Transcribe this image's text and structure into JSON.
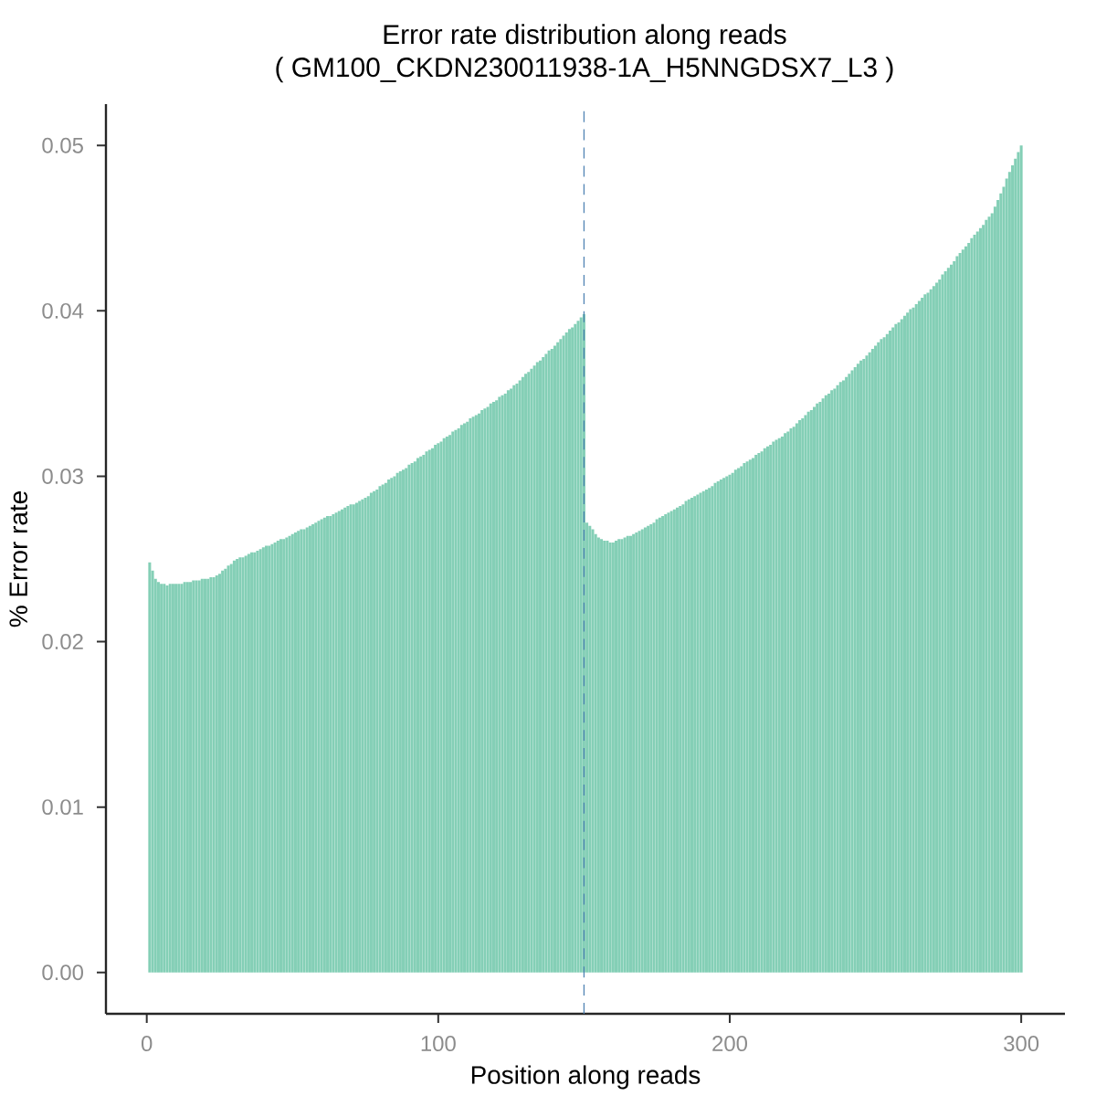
{
  "chart_data": {
    "type": "bar",
    "title": "Error rate distribution along reads",
    "subtitle": "( GM100_CKDN230011938-1A_H5NNGDSX7_L3 )",
    "xlabel": "Position along reads",
    "ylabel": "% Error rate",
    "color": "#84cfb6",
    "x": [
      1,
      2,
      3,
      4,
      5,
      6,
      7,
      8,
      9,
      10,
      11,
      12,
      13,
      14,
      15,
      16,
      17,
      18,
      19,
      20,
      21,
      22,
      23,
      24,
      25,
      26,
      27,
      28,
      29,
      30,
      31,
      32,
      33,
      34,
      35,
      36,
      37,
      38,
      39,
      40,
      41,
      42,
      43,
      44,
      45,
      46,
      47,
      48,
      49,
      50,
      51,
      52,
      53,
      54,
      55,
      56,
      57,
      58,
      59,
      60,
      61,
      62,
      63,
      64,
      65,
      66,
      67,
      68,
      69,
      70,
      71,
      72,
      73,
      74,
      75,
      76,
      77,
      78,
      79,
      80,
      81,
      82,
      83,
      84,
      85,
      86,
      87,
      88,
      89,
      90,
      91,
      92,
      93,
      94,
      95,
      96,
      97,
      98,
      99,
      100,
      101,
      102,
      103,
      104,
      105,
      106,
      107,
      108,
      109,
      110,
      111,
      112,
      113,
      114,
      115,
      116,
      117,
      118,
      119,
      120,
      121,
      122,
      123,
      124,
      125,
      126,
      127,
      128,
      129,
      130,
      131,
      132,
      133,
      134,
      135,
      136,
      137,
      138,
      139,
      140,
      141,
      142,
      143,
      144,
      145,
      146,
      147,
      148,
      149,
      150,
      151,
      152,
      153,
      154,
      155,
      156,
      157,
      158,
      159,
      160,
      161,
      162,
      163,
      164,
      165,
      166,
      167,
      168,
      169,
      170,
      171,
      172,
      173,
      174,
      175,
      176,
      177,
      178,
      179,
      180,
      181,
      182,
      183,
      184,
      185,
      186,
      187,
      188,
      189,
      190,
      191,
      192,
      193,
      194,
      195,
      196,
      197,
      198,
      199,
      200,
      201,
      202,
      203,
      204,
      205,
      206,
      207,
      208,
      209,
      210,
      211,
      212,
      213,
      214,
      215,
      216,
      217,
      218,
      219,
      220,
      221,
      222,
      223,
      224,
      225,
      226,
      227,
      228,
      229,
      230,
      231,
      232,
      233,
      234,
      235,
      236,
      237,
      238,
      239,
      240,
      241,
      242,
      243,
      244,
      245,
      246,
      247,
      248,
      249,
      250,
      251,
      252,
      253,
      254,
      255,
      256,
      257,
      258,
      259,
      260,
      261,
      262,
      263,
      264,
      265,
      266,
      267,
      268,
      269,
      270,
      271,
      272,
      273,
      274,
      275,
      276,
      277,
      278,
      279,
      280,
      281,
      282,
      283,
      284,
      285,
      286,
      287,
      288,
      289,
      290,
      291,
      292,
      293,
      294,
      295,
      296,
      297,
      298,
      299,
      300
    ],
    "values": [
      0.0248,
      0.0243,
      0.0238,
      0.0236,
      0.0235,
      0.0235,
      0.0234,
      0.0235,
      0.0235,
      0.0235,
      0.0235,
      0.0235,
      0.0236,
      0.0236,
      0.0236,
      0.0237,
      0.0237,
      0.0237,
      0.0238,
      0.0238,
      0.0238,
      0.0239,
      0.0239,
      0.024,
      0.0241,
      0.0243,
      0.0244,
      0.0246,
      0.0247,
      0.0249,
      0.025,
      0.0251,
      0.0251,
      0.0252,
      0.0253,
      0.0254,
      0.0254,
      0.0255,
      0.0256,
      0.0257,
      0.0258,
      0.0258,
      0.0259,
      0.026,
      0.0261,
      0.0262,
      0.0262,
      0.0263,
      0.0264,
      0.0265,
      0.0266,
      0.0267,
      0.0268,
      0.0268,
      0.0269,
      0.027,
      0.0271,
      0.0272,
      0.0273,
      0.0274,
      0.0275,
      0.0276,
      0.0276,
      0.0277,
      0.0278,
      0.0279,
      0.028,
      0.0281,
      0.0282,
      0.0283,
      0.0283,
      0.0284,
      0.0285,
      0.0286,
      0.0287,
      0.0288,
      0.029,
      0.0291,
      0.0292,
      0.0294,
      0.0295,
      0.0296,
      0.0298,
      0.0299,
      0.03,
      0.0302,
      0.0303,
      0.0304,
      0.0305,
      0.0307,
      0.0308,
      0.0309,
      0.0311,
      0.0312,
      0.0313,
      0.0315,
      0.0316,
      0.0317,
      0.0319,
      0.032,
      0.0321,
      0.0323,
      0.0324,
      0.0325,
      0.0327,
      0.0328,
      0.0329,
      0.0331,
      0.0332,
      0.0333,
      0.0335,
      0.0336,
      0.0337,
      0.0338,
      0.034,
      0.0341,
      0.0342,
      0.0344,
      0.0345,
      0.0346,
      0.0348,
      0.0349,
      0.035,
      0.0352,
      0.0353,
      0.0355,
      0.0356,
      0.0358,
      0.036,
      0.0362,
      0.0363,
      0.0365,
      0.0367,
      0.0369,
      0.037,
      0.0372,
      0.0374,
      0.0376,
      0.0377,
      0.0379,
      0.0381,
      0.0383,
      0.0385,
      0.0387,
      0.0389,
      0.039,
      0.0392,
      0.0394,
      0.0396,
      0.0398,
      0.0272,
      0.027,
      0.0268,
      0.0265,
      0.0263,
      0.0262,
      0.0261,
      0.0261,
      0.026,
      0.026,
      0.0261,
      0.0262,
      0.0262,
      0.0263,
      0.0264,
      0.0264,
      0.0265,
      0.0266,
      0.0267,
      0.0268,
      0.0269,
      0.027,
      0.0271,
      0.0272,
      0.0274,
      0.0275,
      0.0276,
      0.0277,
      0.0278,
      0.0279,
      0.028,
      0.0281,
      0.0282,
      0.0283,
      0.0285,
      0.0286,
      0.0287,
      0.0288,
      0.0289,
      0.029,
      0.0291,
      0.0292,
      0.0293,
      0.0294,
      0.0296,
      0.0297,
      0.0298,
      0.0299,
      0.03,
      0.0301,
      0.0302,
      0.0304,
      0.0305,
      0.0306,
      0.0308,
      0.0309,
      0.031,
      0.0311,
      0.0313,
      0.0314,
      0.0315,
      0.0317,
      0.0318,
      0.0319,
      0.0321,
      0.0322,
      0.0323,
      0.0324,
      0.0326,
      0.0327,
      0.0329,
      0.033,
      0.0332,
      0.0334,
      0.0335,
      0.0337,
      0.0339,
      0.034,
      0.0342,
      0.0344,
      0.0345,
      0.0347,
      0.0349,
      0.035,
      0.0352,
      0.0353,
      0.0355,
      0.0357,
      0.0358,
      0.036,
      0.0362,
      0.0364,
      0.0366,
      0.0368,
      0.037,
      0.0371,
      0.0373,
      0.0375,
      0.0377,
      0.0379,
      0.0381,
      0.0383,
      0.0384,
      0.0386,
      0.0388,
      0.039,
      0.0392,
      0.0393,
      0.0395,
      0.0397,
      0.0399,
      0.0401,
      0.0402,
      0.0404,
      0.0406,
      0.0408,
      0.041,
      0.0411,
      0.0413,
      0.0415,
      0.0417,
      0.0419,
      0.0422,
      0.0424,
      0.0426,
      0.0428,
      0.043,
      0.0433,
      0.0435,
      0.0437,
      0.0439,
      0.0441,
      0.0444,
      0.0446,
      0.0448,
      0.045,
      0.0452,
      0.0455,
      0.0457,
      0.0459,
      0.0463,
      0.0467,
      0.0471,
      0.0475,
      0.048,
      0.0484,
      0.0488,
      0.0492,
      0.0496,
      0.05
    ],
    "xlim": [
      -14,
      315
    ],
    "ylim": [
      -0.0025,
      0.0525
    ],
    "xticks": [
      0,
      100,
      200,
      300
    ],
    "yticks": [
      {
        "value": 0,
        "label": "0.00"
      },
      {
        "value": 0.01,
        "label": "0.01"
      },
      {
        "value": 0.02,
        "label": "0.02"
      },
      {
        "value": 0.03,
        "label": "0.03"
      },
      {
        "value": 0.04,
        "label": "0.04"
      },
      {
        "value": 0.05,
        "label": "0.05"
      }
    ],
    "ref_lines": [
      {
        "axis": "x",
        "value": 150,
        "color": "#4a7fb0",
        "line_style": "dashed"
      }
    ]
  }
}
